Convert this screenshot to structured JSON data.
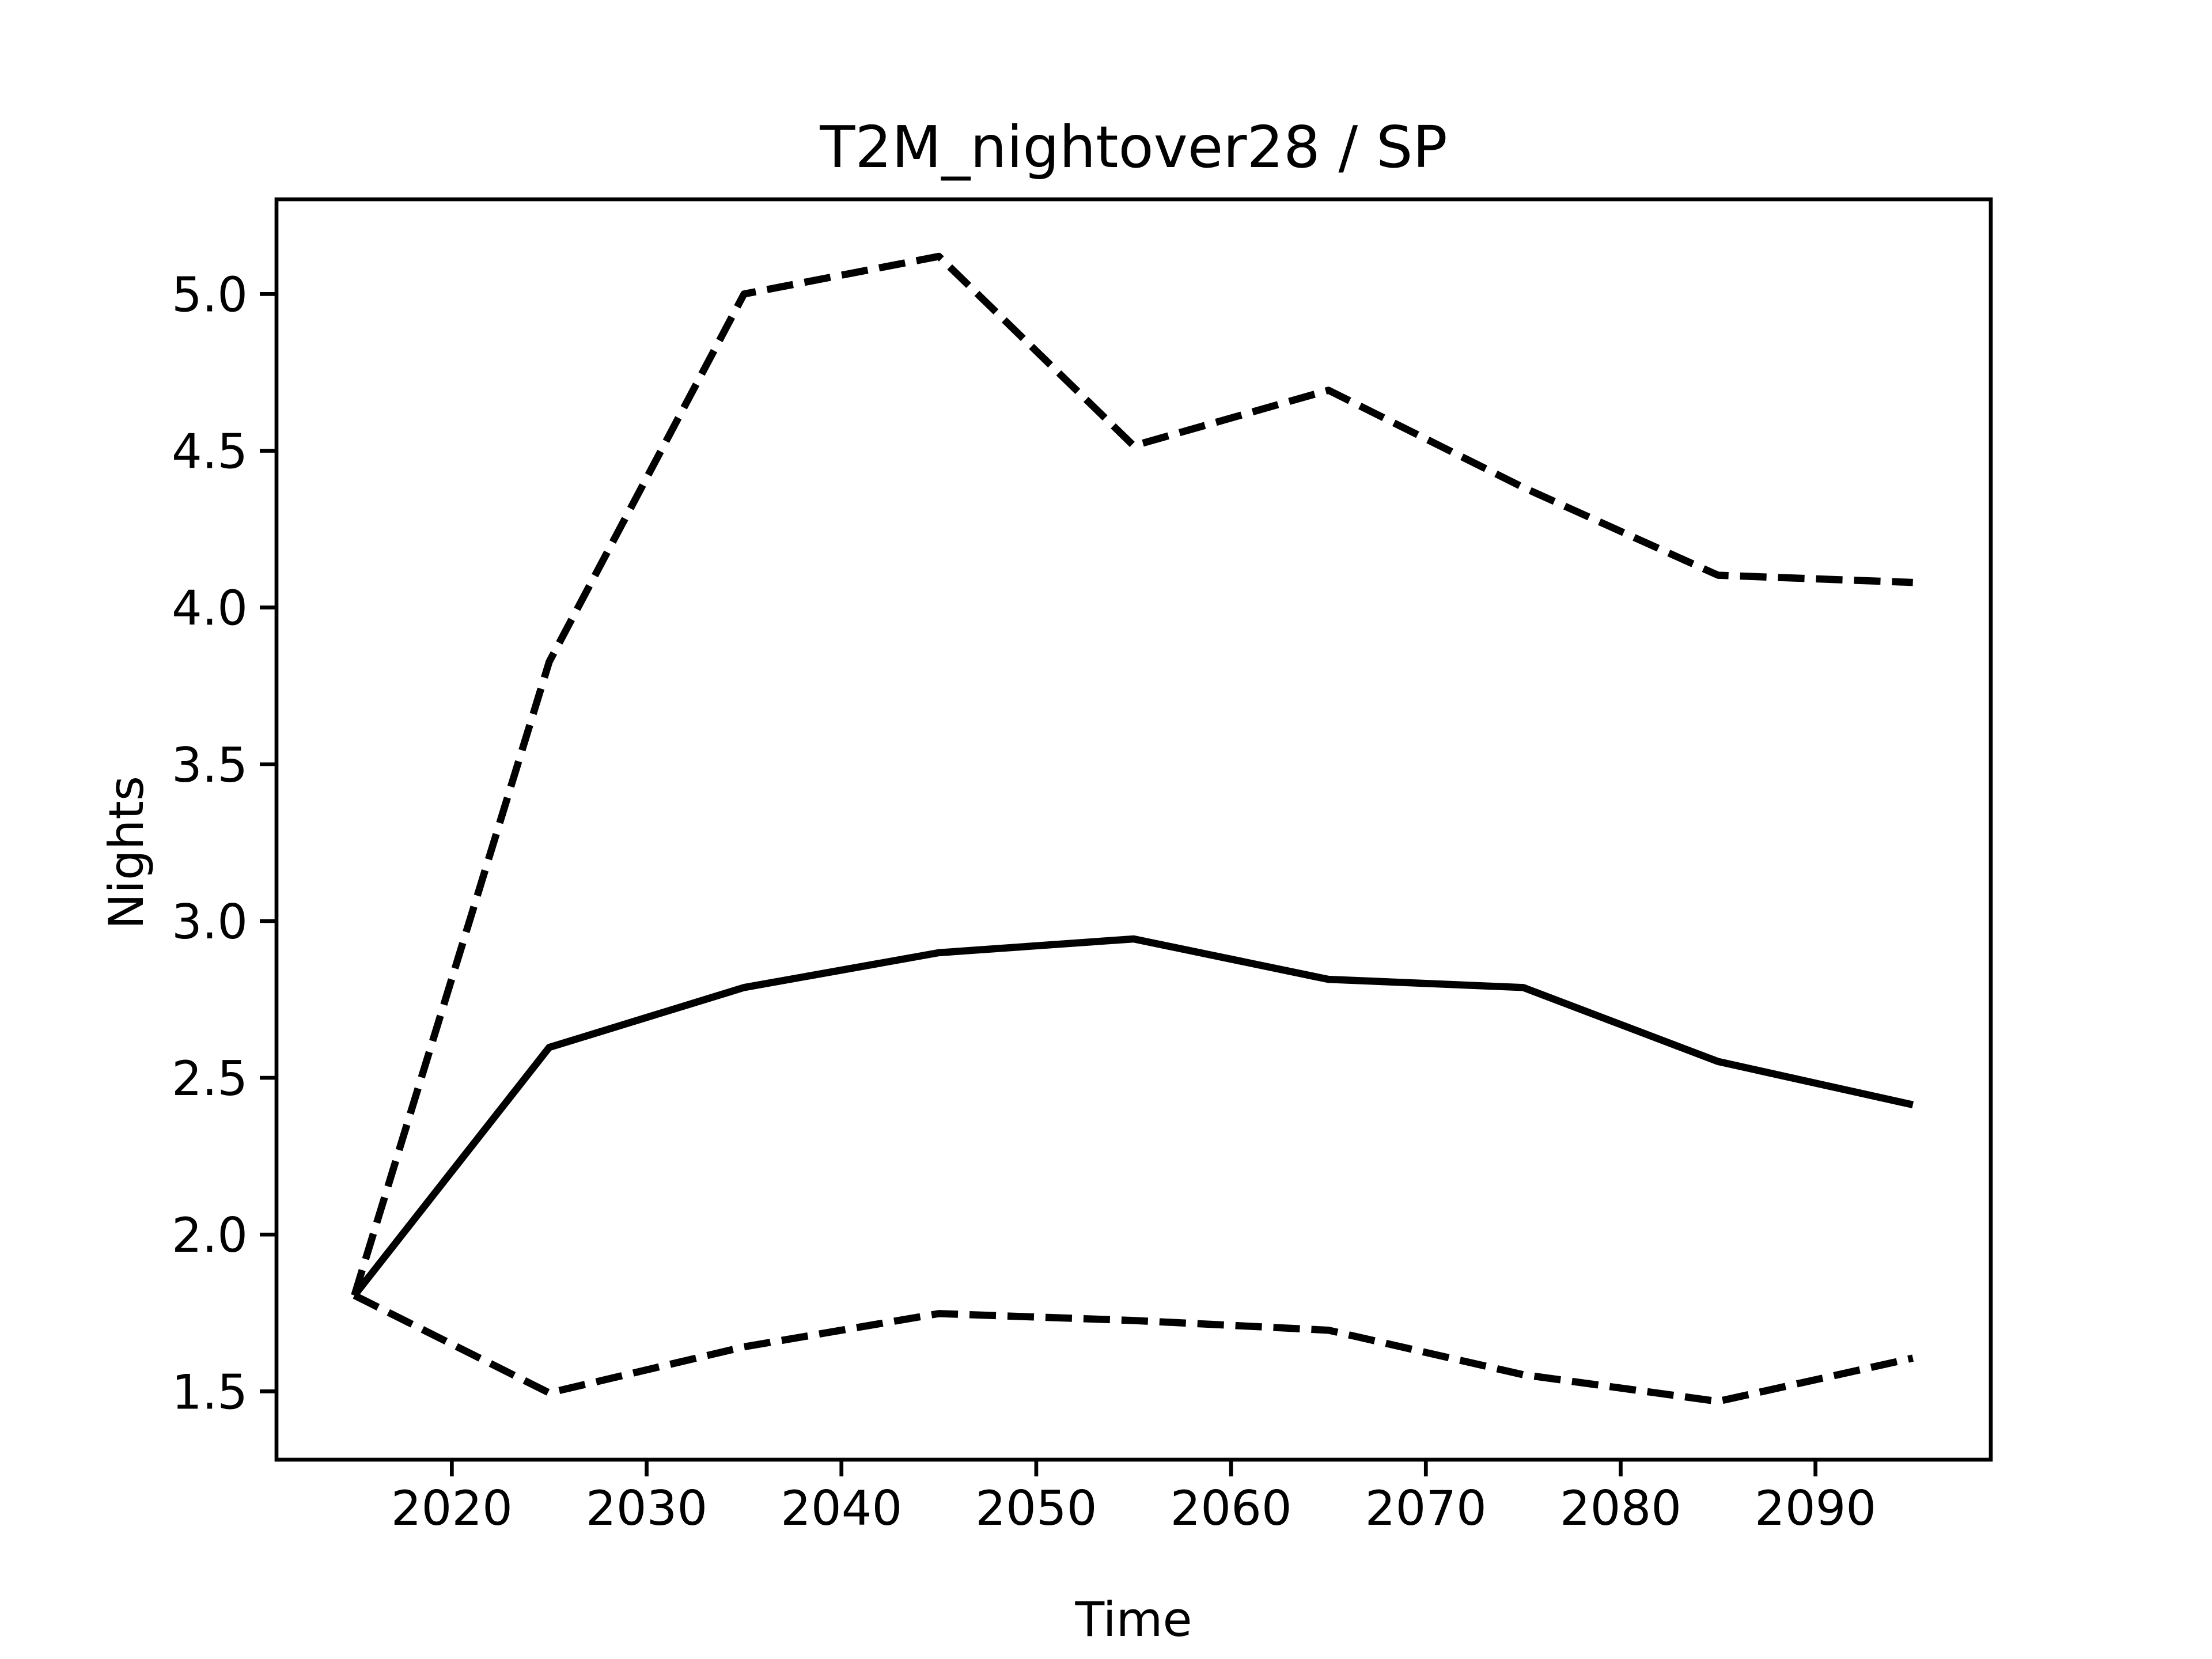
{
  "chart_data": {
    "type": "line",
    "title": "T2M_nightover28 / SP",
    "x_label": "Time",
    "y_label": "Nights",
    "x": [
      2015,
      2025,
      2035,
      2045,
      2055,
      2065,
      2075,
      2085,
      2095
    ],
    "series": [
      {
        "color": "#000000",
        "linestyle": "solid",
        "values": [
          1.806,
          2.597,
          2.788,
          2.899,
          2.943,
          2.814,
          2.788,
          2.552,
          2.414
        ]
      },
      {
        "color": "#000000",
        "linestyle": "dashed",
        "values": [
          1.806,
          3.827,
          5.0,
          5.12,
          4.516,
          4.693,
          4.383,
          4.103,
          4.08
        ]
      },
      {
        "color": "#000000",
        "linestyle": "dashed",
        "values": [
          1.806,
          1.495,
          1.642,
          1.748,
          1.726,
          1.695,
          1.553,
          1.468,
          1.606
        ]
      }
    ],
    "xlim": [
      2011,
      2099
    ],
    "xticks": [
      2020,
      2030,
      2040,
      2050,
      2060,
      2070,
      2080,
      2090
    ],
    "ylim": [
      1.282,
      5.302
    ],
    "yticks": [
      1.5,
      {
        "value": 2,
        "label": "2.0"
      },
      2.5,
      {
        "value": 3,
        "label": "3.0"
      },
      3.5,
      {
        "value": 4,
        "label": "4.0"
      },
      4.5,
      {
        "value": 5,
        "label": "5.0"
      }
    ],
    "grid": false
  }
}
